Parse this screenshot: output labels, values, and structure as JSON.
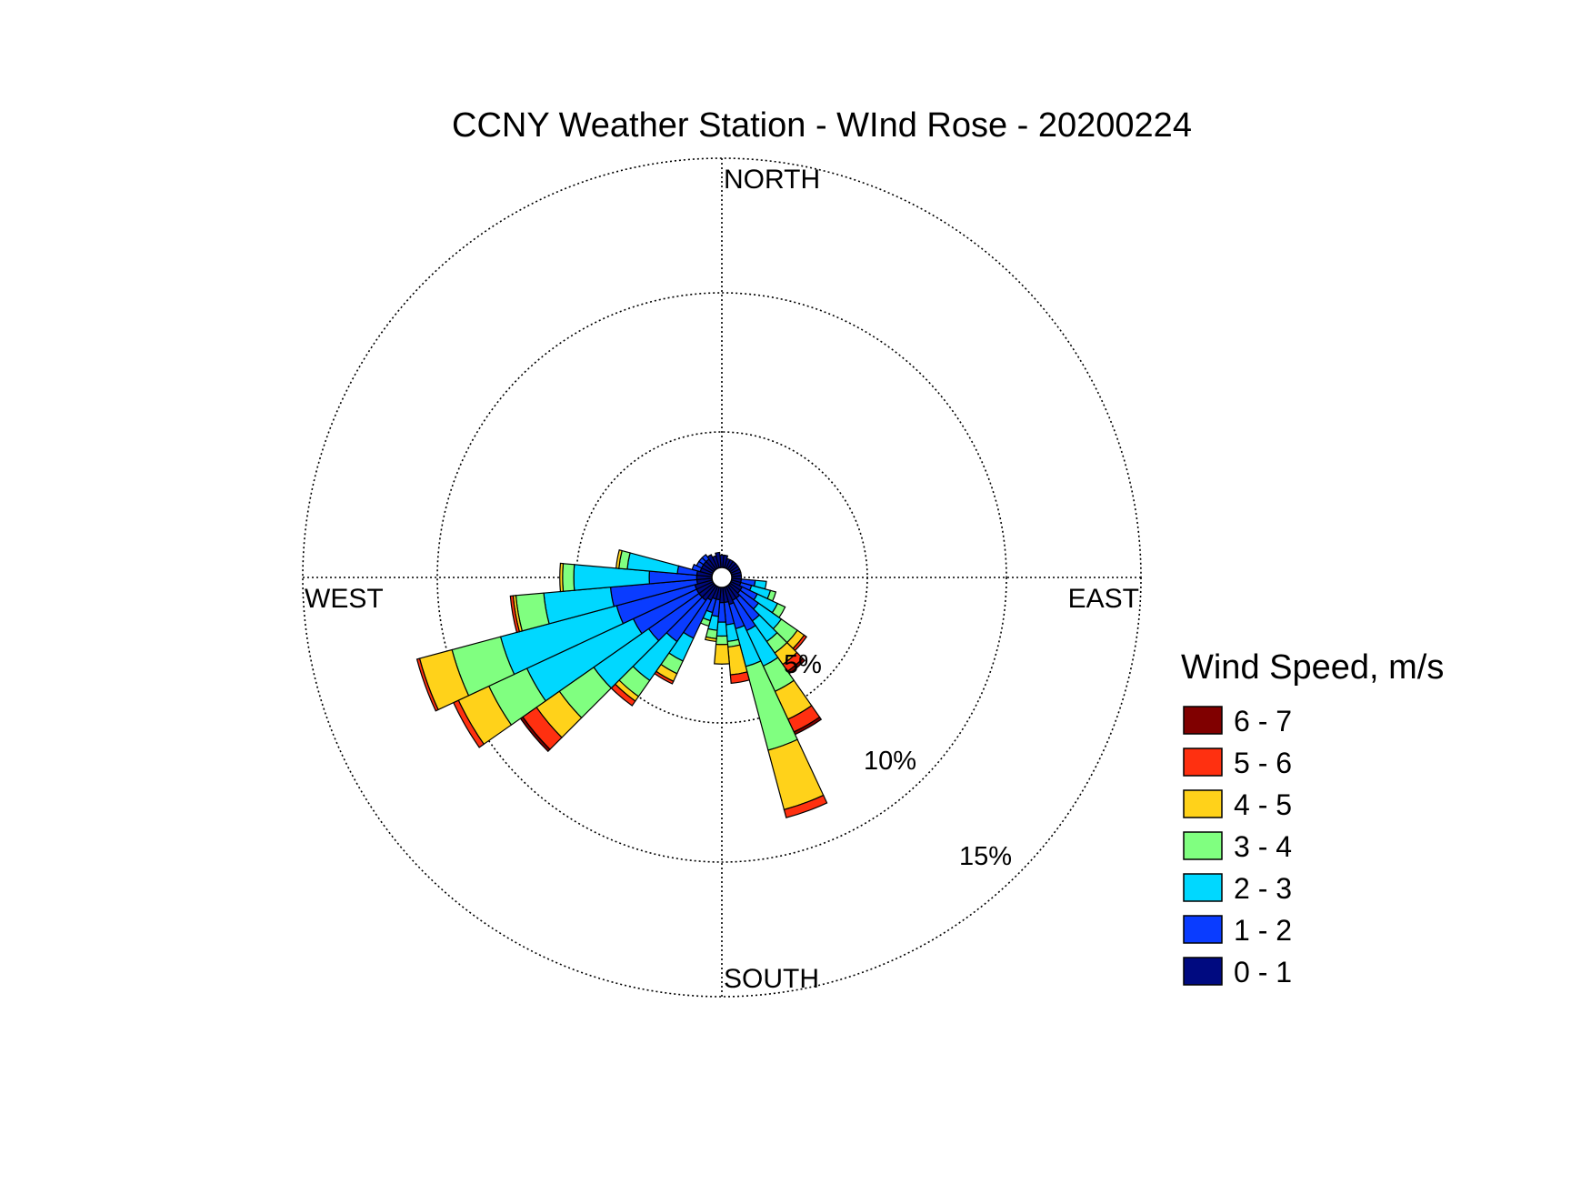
{
  "chart_data": {
    "type": "wind-rose",
    "title": "CCNY Weather Station - WInd Rose - 20200224",
    "direction_labels": {
      "north": "NORTH",
      "east": "EAST",
      "south": "SOUTH",
      "west": "WEST"
    },
    "radial_axis": {
      "unit": "%",
      "rings": [
        5,
        10,
        15
      ],
      "ring_labels": [
        "5%",
        "10%",
        "15%"
      ],
      "max": 15,
      "grid": "dotted"
    },
    "legend": {
      "title": "Wind Speed, m/s",
      "position": "right",
      "bins": [
        {
          "label": "6 - 7",
          "color": "#800000"
        },
        {
          "label": "5 - 6",
          "color": "#ff3010"
        },
        {
          "label": "4 - 5",
          "color": "#ffd21a"
        },
        {
          "label": "3 - 4",
          "color": "#80ff80"
        },
        {
          "label": "2 - 3",
          "color": "#00d8ff"
        },
        {
          "label": "1 - 2",
          "color": "#0a3cff"
        },
        {
          "label": "0 - 1",
          "color": "#000a80"
        }
      ]
    },
    "sector_width_deg": 10,
    "cumulative_order": [
      "0 - 1",
      "1 - 2",
      "2 - 3",
      "3 - 4",
      "4 - 5",
      "5 - 6",
      "6 - 7"
    ],
    "sectors": [
      {
        "dir": 0,
        "cum": [
          0.8
        ]
      },
      {
        "dir": 10,
        "cum": [
          0.8
        ]
      },
      {
        "dir": 20,
        "cum": [
          0.7
        ]
      },
      {
        "dir": 30,
        "cum": [
          0.7
        ]
      },
      {
        "dir": 40,
        "cum": [
          0.7
        ]
      },
      {
        "dir": 50,
        "cum": [
          0.7
        ]
      },
      {
        "dir": 60,
        "cum": [
          0.7
        ]
      },
      {
        "dir": 70,
        "cum": [
          0.7
        ]
      },
      {
        "dir": 80,
        "cum": [
          0.7
        ]
      },
      {
        "dir": 90,
        "cum": [
          0.7
        ]
      },
      {
        "dir": 100,
        "cum": [
          0.7,
          1.2,
          1.6
        ]
      },
      {
        "dir": 110,
        "cum": [
          0.7,
          1.1,
          1.8,
          2.0
        ]
      },
      {
        "dir": 120,
        "cum": [
          0.8,
          1.4,
          2.2,
          2.5
        ]
      },
      {
        "dir": 130,
        "cum": [
          0.8,
          1.6,
          2.6,
          3.3,
          3.6,
          3.7
        ]
      },
      {
        "dir": 140,
        "cum": [
          0.9,
          1.9,
          2.8,
          3.3,
          3.8,
          4.1,
          4.2
        ]
      },
      {
        "dir": 150,
        "cum": [
          0.9,
          2.1,
          3.5,
          4.5,
          5.6,
          6.1,
          6.2
        ]
      },
      {
        "dir": 160,
        "cum": [
          1.0,
          1.9,
          3.3,
          6.4,
          8.6,
          8.9
        ]
      },
      {
        "dir": 170,
        "cum": [
          0.9,
          1.7,
          2.3,
          2.5,
          3.5,
          3.8
        ]
      },
      {
        "dir": 180,
        "cum": [
          0.9,
          1.6,
          2.1,
          2.4,
          3.1
        ]
      },
      {
        "dir": 190,
        "cum": [
          0.8,
          1.4,
          1.9,
          2.2,
          2.3
        ]
      },
      {
        "dir": 200,
        "cum": [
          0.8,
          1.3,
          1.6,
          1.8
        ]
      },
      {
        "dir": 210,
        "cum": [
          0.9,
          2.4,
          3.3,
          3.8,
          4.1,
          4.2
        ]
      },
      {
        "dir": 220,
        "cum": [
          1.0,
          2.8,
          4.5,
          5.2,
          5.4,
          5.6
        ]
      },
      {
        "dir": 230,
        "cum": [
          1.0,
          3.2,
          5.6,
          7.1,
          8.1,
          8.7,
          8.8
        ]
      },
      {
        "dir": 240,
        "cum": [
          1.0,
          3.5,
          7.7,
          9.2,
          10.4,
          10.6
        ]
      },
      {
        "dir": 250,
        "cum": [
          1.0,
          3.9,
          8.2,
          10.0,
          11.2,
          11.3
        ]
      },
      {
        "dir": 260,
        "cum": [
          0.9,
          4.0,
          6.4,
          7.4,
          7.5,
          7.6
        ]
      },
      {
        "dir": 270,
        "cum": [
          0.9,
          2.6,
          5.3,
          5.7,
          5.8
        ]
      },
      {
        "dir": 280,
        "cum": [
          0.9,
          1.6,
          3.4,
          3.7,
          3.8
        ]
      },
      {
        "dir": 290,
        "cum": [
          0.8,
          1.1
        ]
      },
      {
        "dir": 300,
        "cum": [
          0.8,
          1.0
        ]
      },
      {
        "dir": 310,
        "cum": [
          0.8,
          1.0
        ]
      },
      {
        "dir": 320,
        "cum": [
          0.8,
          1.0
        ]
      },
      {
        "dir": 330,
        "cum": [
          0.9
        ]
      },
      {
        "dir": 340,
        "cum": [
          0.8
        ]
      },
      {
        "dir": 350,
        "cum": [
          0.9
        ]
      }
    ]
  }
}
